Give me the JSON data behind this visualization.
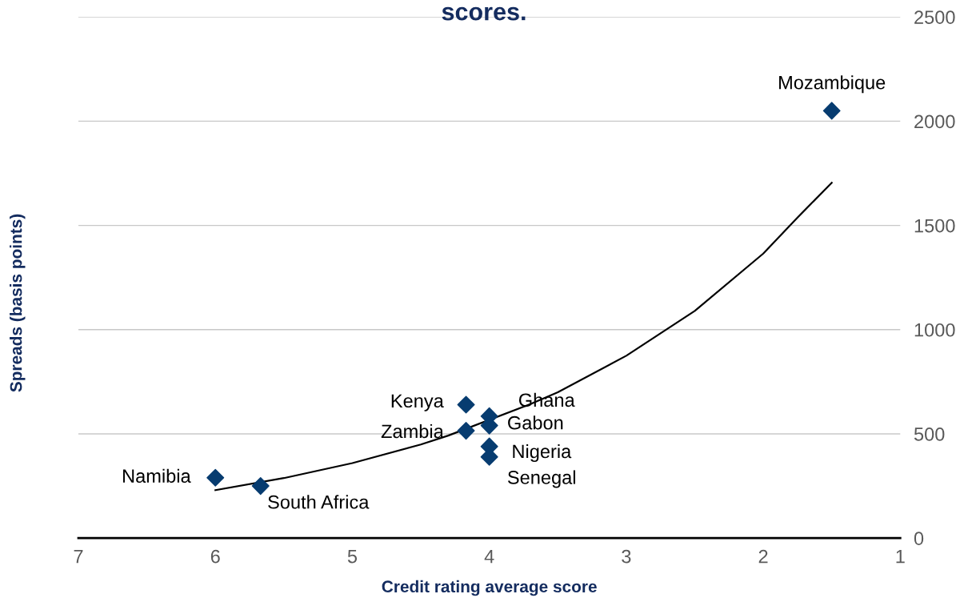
{
  "chart_data": {
    "type": "scatter",
    "title": "scores.",
    "xlabel": "Credit rating average score",
    "ylabel": "Spreads (basis points)",
    "x": [
      1.5,
      6.0,
      5.67,
      4.17,
      4.17,
      4.0,
      4.0,
      4.0,
      4.0
    ],
    "series": [
      {
        "color": "#073c70",
        "marker": "diamond",
        "values": [
          2050,
          290,
          250,
          640,
          515,
          585,
          540,
          440,
          390
        ]
      },
      {
        "type": "line",
        "color": "#000000",
        "marker": "none",
        "x": [
          6.0,
          5.5,
          5.0,
          4.5,
          4.3,
          3.7,
          3.5,
          3.0,
          2.5,
          2.0,
          1.75,
          1.5
        ],
        "values": [
          230,
          288,
          360,
          449,
          492,
          643,
          700,
          875,
          1090,
          1365,
          1538,
          1705
        ]
      }
    ],
    "annotations": [
      {
        "text": "Mozambique",
        "x": 1.5,
        "y": 2050
      },
      {
        "text": "Namibia",
        "x": 6.0,
        "y": 290
      },
      {
        "text": "South Africa",
        "x": 5.67,
        "y": 250
      },
      {
        "text": "Kenya",
        "x": 4.17,
        "y": 640
      },
      {
        "text": "Zambia",
        "x": 4.17,
        "y": 515
      },
      {
        "text": "Ghana",
        "x": 4.0,
        "y": 585
      },
      {
        "text": "Gabon",
        "x": 4.0,
        "y": 540
      },
      {
        "text": "Nigeria",
        "x": 4.0,
        "y": 440
      },
      {
        "text": "Senegal",
        "x": 4.0,
        "y": 390
      }
    ],
    "xlim": [
      7,
      1
    ],
    "xticks": [
      7,
      6,
      5,
      4,
      3,
      2,
      1
    ],
    "ylim": [
      0,
      2500
    ],
    "yticks": [
      0,
      500,
      1000,
      1500,
      2000,
      2500
    ],
    "grid": "y",
    "legend": false
  }
}
